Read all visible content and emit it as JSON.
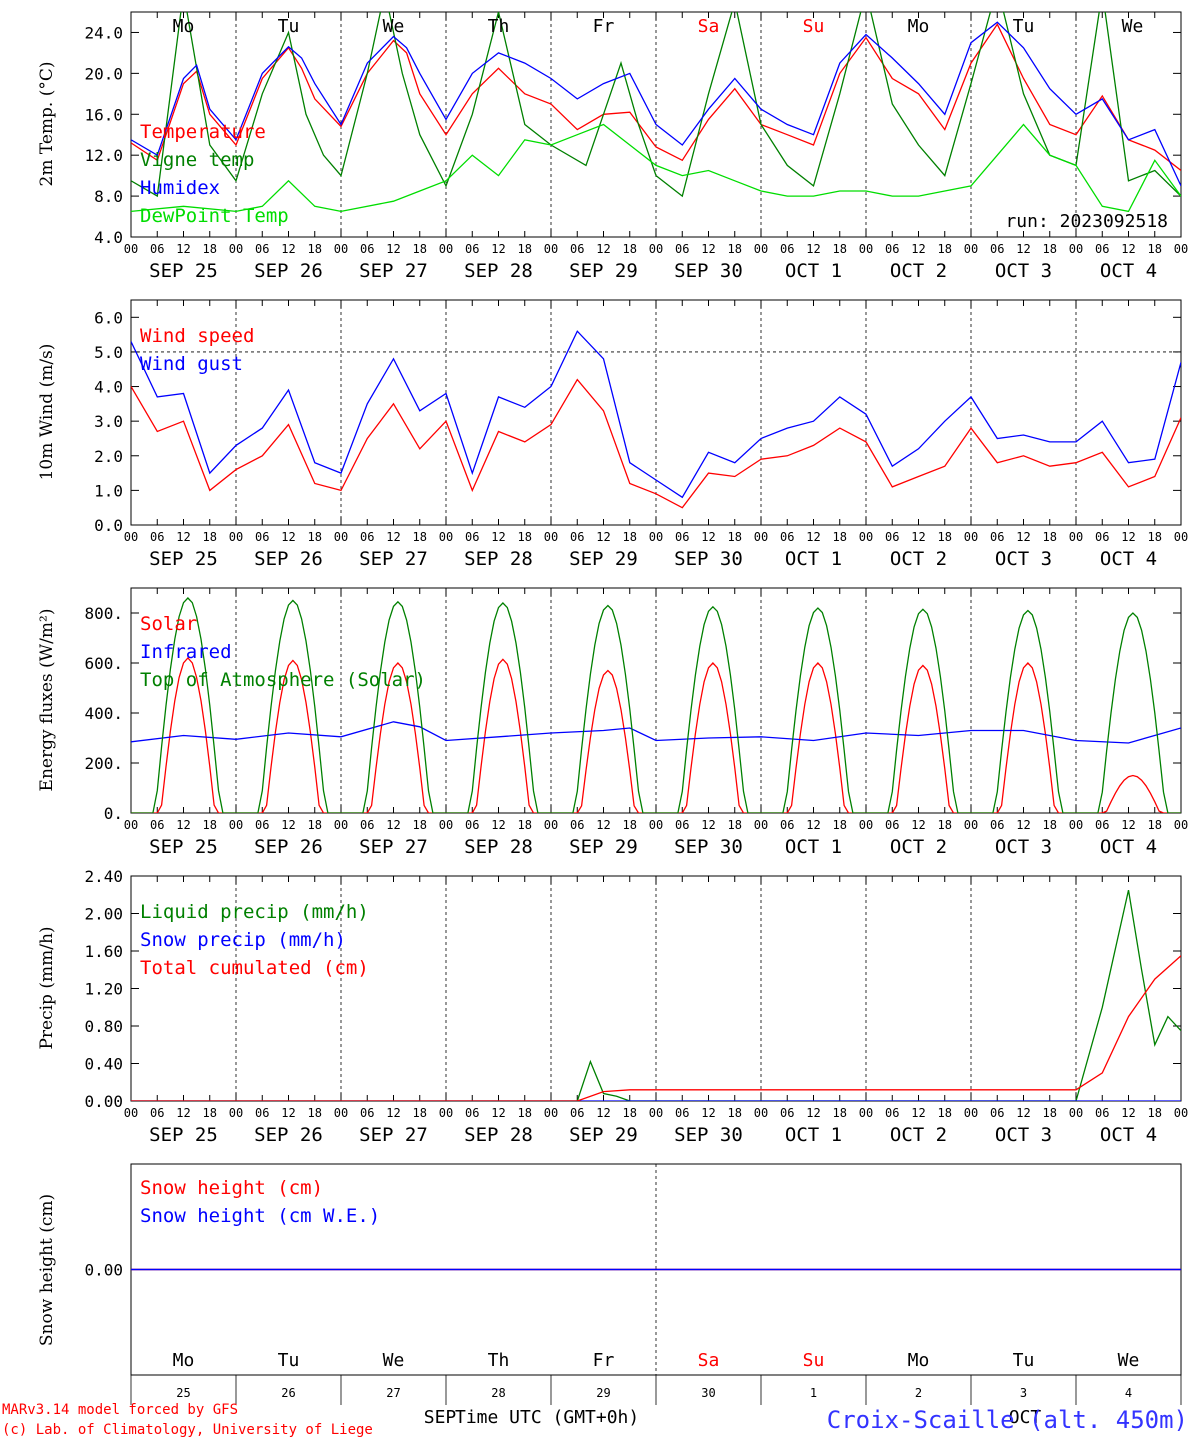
{
  "colors": {
    "temperature": "#ff0000",
    "vigne": "#008000",
    "humidex": "#0000ff",
    "dewpoint": "#00dd00",
    "snow_cm": "#ff0000",
    "snow_we": "#0000ff",
    "weekend": "#ff0000",
    "station": "#3333ff",
    "credits": "#ff0000"
  },
  "day_names": [
    {
      "label": "Mo",
      "weekend": false
    },
    {
      "label": "Tu",
      "weekend": false
    },
    {
      "label": "We",
      "weekend": false
    },
    {
      "label": "Th",
      "weekend": false
    },
    {
      "label": "Fr",
      "weekend": false
    },
    {
      "label": "Sa",
      "weekend": true
    },
    {
      "label": "Su",
      "weekend": true
    },
    {
      "label": "Mo",
      "weekend": false
    },
    {
      "label": "Tu",
      "weekend": false
    },
    {
      "label": "We",
      "weekend": false
    }
  ],
  "date_labels": [
    "SEP 25",
    "SEP 26",
    "SEP 27",
    "SEP 28",
    "SEP 29",
    "SEP 30",
    "OCT  1",
    "OCT  2",
    "OCT  3",
    "OCT  4"
  ],
  "hour_ticks": [
    "00",
    "06",
    "12",
    "18"
  ],
  "bottom_day_numbers": [
    "25",
    "26",
    "27",
    "28",
    "29",
    "30",
    "1",
    "2",
    "3",
    "4"
  ],
  "bottom_month_labels": [
    "SEP",
    "OCT"
  ],
  "xlabel": "Time UTC (GMT+0h)",
  "run_label": "run: 2023092518",
  "footer": {
    "credit_line1": "MARv3.14 model forced by GFS",
    "credit_line2": "(c) Lab. of Climatology, University of Liege",
    "station": "Croix-Scaille (alt. 450m)"
  },
  "chart_data": [
    {
      "type": "line",
      "ylabel": "2m Temp. (°C)",
      "ylim": [
        4.0,
        26.0
      ],
      "yticks": [
        "4.0",
        "8.0",
        "12.0",
        "16.0",
        "20.0",
        "24.0"
      ],
      "ytick_values": [
        4,
        8,
        12,
        16,
        20,
        24
      ],
      "x_unit": "hours since SEP 25 00 UTC",
      "series": [
        {
          "name": "Temperature",
          "color": "#ff0000",
          "x": [
            0,
            6,
            12,
            15,
            18,
            24,
            30,
            36,
            39,
            42,
            48,
            54,
            60,
            63,
            66,
            72,
            78,
            84,
            90,
            96,
            102,
            108,
            114,
            120,
            126,
            132,
            138,
            144,
            150,
            156,
            162,
            168,
            174,
            180,
            186,
            192,
            198,
            204,
            210,
            216,
            222,
            228,
            234,
            240
          ],
          "y": [
            13.2,
            11.5,
            19.0,
            20.2,
            16.0,
            13.0,
            19.5,
            22.5,
            20.5,
            17.5,
            14.8,
            20.0,
            23.2,
            22.0,
            18.0,
            14.0,
            18.0,
            20.5,
            18.0,
            17.0,
            14.5,
            16.0,
            16.2,
            12.8,
            11.5,
            15.5,
            18.5,
            15.0,
            14.0,
            13.0,
            20.0,
            23.5,
            19.5,
            18.0,
            14.5,
            21.0,
            24.8,
            19.5,
            15.0,
            14.0,
            17.8,
            13.5,
            12.5,
            10.5
          ]
        },
        {
          "name": "Vigne temp",
          "color": "#008000",
          "x": [
            0,
            6,
            9,
            12,
            18,
            24,
            30,
            36,
            40,
            44,
            48,
            54,
            58,
            62,
            66,
            72,
            78,
            84,
            90,
            96,
            104,
            108,
            112,
            116,
            120,
            126,
            132,
            138,
            144,
            150,
            156,
            162,
            168,
            174,
            180,
            186,
            192,
            198,
            204,
            210,
            216,
            222,
            228,
            234,
            240
          ],
          "y": [
            9.5,
            8.0,
            18.0,
            28.0,
            13.0,
            9.5,
            18.0,
            24.0,
            16.0,
            12.0,
            10.0,
            20.0,
            28.0,
            20.0,
            14.0,
            9.0,
            16.0,
            26.0,
            15.0,
            13.0,
            11.0,
            16.0,
            21.0,
            15.0,
            10.0,
            8.0,
            18.0,
            27.0,
            15.0,
            11.0,
            9.0,
            18.0,
            28.0,
            17.0,
            13.0,
            10.0,
            19.0,
            28.5,
            18.0,
            12.0,
            11.0,
            28.0,
            9.5,
            10.5,
            8.0
          ]
        },
        {
          "name": "Humidex",
          "color": "#0000ff",
          "x": [
            0,
            6,
            12,
            15,
            18,
            24,
            30,
            36,
            39,
            42,
            48,
            54,
            60,
            63,
            66,
            72,
            78,
            84,
            90,
            96,
            102,
            108,
            114,
            120,
            126,
            132,
            138,
            144,
            150,
            156,
            162,
            168,
            174,
            180,
            186,
            192,
            198,
            204,
            210,
            216,
            222,
            228,
            234,
            240
          ],
          "y": [
            13.5,
            12.0,
            19.5,
            20.8,
            16.5,
            13.5,
            20.0,
            22.6,
            21.5,
            19.0,
            15.0,
            21.0,
            23.6,
            22.5,
            20.0,
            15.5,
            20.0,
            22.0,
            21.0,
            19.5,
            17.5,
            19.0,
            20.0,
            15.0,
            13.0,
            16.5,
            19.5,
            16.5,
            15.0,
            14.0,
            21.0,
            23.8,
            21.5,
            19.0,
            16.0,
            23.0,
            25.0,
            22.5,
            18.5,
            16.0,
            17.5,
            13.5,
            14.5,
            9.0
          ]
        },
        {
          "name": "DewPoint Temp",
          "color": "#00dd00",
          "x": [
            0,
            12,
            24,
            30,
            36,
            42,
            48,
            60,
            66,
            72,
            78,
            84,
            90,
            96,
            102,
            108,
            114,
            120,
            126,
            132,
            138,
            144,
            150,
            156,
            162,
            168,
            174,
            180,
            186,
            192,
            198,
            204,
            210,
            216,
            222,
            228,
            234,
            240
          ],
          "y": [
            6.5,
            7.0,
            6.5,
            7.0,
            9.5,
            7.0,
            6.5,
            7.5,
            8.5,
            9.5,
            12.0,
            10.0,
            13.5,
            13.0,
            14.0,
            15.0,
            13.0,
            11.0,
            10.0,
            10.5,
            9.5,
            8.5,
            8.0,
            8.0,
            8.5,
            8.5,
            8.0,
            8.0,
            8.5,
            9.0,
            12.0,
            15.0,
            12.0,
            11.0,
            7.0,
            6.5,
            11.5,
            8.0
          ]
        }
      ]
    },
    {
      "type": "line",
      "ylabel": "10m Wind (m/s)",
      "ylim": [
        0.0,
        6.5
      ],
      "yticks": [
        "0.0",
        "1.0",
        "2.0",
        "3.0",
        "4.0",
        "5.0",
        "6.0"
      ],
      "ytick_values": [
        0,
        1,
        2,
        3,
        4,
        5,
        6
      ],
      "reference_line": 5.0,
      "series": [
        {
          "name": "Wind speed",
          "color": "#ff0000",
          "x": [
            0,
            6,
            12,
            18,
            24,
            30,
            36,
            42,
            48,
            54,
            60,
            66,
            72,
            78,
            84,
            90,
            96,
            102,
            108,
            114,
            120,
            126,
            132,
            138,
            144,
            150,
            156,
            162,
            168,
            174,
            180,
            186,
            192,
            198,
            204,
            210,
            216,
            222,
            228,
            234,
            240
          ],
          "y": [
            4.0,
            2.7,
            3.0,
            1.0,
            1.6,
            2.0,
            2.9,
            1.2,
            1.0,
            2.5,
            3.5,
            2.2,
            3.0,
            1.0,
            2.7,
            2.4,
            2.9,
            4.2,
            3.3,
            1.2,
            0.9,
            0.5,
            1.5,
            1.4,
            1.9,
            2.0,
            2.3,
            2.8,
            2.4,
            1.1,
            1.4,
            1.7,
            2.8,
            1.8,
            2.0,
            1.7,
            1.8,
            2.1,
            1.1,
            1.4,
            3.1
          ]
        },
        {
          "name": "Wind gust",
          "color": "#0000ff",
          "x": [
            0,
            6,
            12,
            18,
            24,
            30,
            36,
            42,
            48,
            54,
            60,
            66,
            72,
            78,
            84,
            90,
            96,
            102,
            108,
            114,
            120,
            126,
            132,
            138,
            144,
            150,
            156,
            162,
            168,
            174,
            180,
            186,
            192,
            198,
            204,
            210,
            216,
            222,
            228,
            234,
            240
          ],
          "y": [
            5.3,
            3.7,
            3.8,
            1.5,
            2.3,
            2.8,
            3.9,
            1.8,
            1.5,
            3.5,
            4.8,
            3.3,
            3.8,
            1.5,
            3.7,
            3.4,
            4.0,
            5.6,
            4.8,
            1.8,
            1.3,
            0.8,
            2.1,
            1.8,
            2.5,
            2.8,
            3.0,
            3.7,
            3.2,
            1.7,
            2.2,
            3.0,
            3.7,
            2.5,
            2.6,
            2.4,
            2.4,
            3.0,
            1.8,
            1.9,
            4.7
          ]
        }
      ]
    },
    {
      "type": "line",
      "ylabel": "Energy fluxes (W/m²)",
      "ylim": [
        0,
        900
      ],
      "yticks": [
        "0.",
        "200.",
        "400.",
        "600.",
        "800."
      ],
      "ytick_values": [
        0,
        200,
        400,
        600,
        800
      ],
      "series": [
        {
          "name": "Solar",
          "color": "#ff0000",
          "day_peaks": [
            620,
            610,
            600,
            615,
            570,
            600,
            600,
            590,
            600,
            150
          ]
        },
        {
          "name": "Infrared",
          "color": "#0000ff",
          "x": [
            0,
            12,
            24,
            36,
            48,
            60,
            66,
            72,
            84,
            96,
            108,
            114,
            120,
            132,
            144,
            156,
            168,
            180,
            192,
            204,
            216,
            228,
            240
          ],
          "y": [
            285,
            310,
            295,
            320,
            305,
            365,
            345,
            290,
            305,
            320,
            330,
            340,
            290,
            300,
            305,
            290,
            320,
            310,
            330,
            330,
            290,
            280,
            340
          ]
        },
        {
          "name": "Top of Atmosphere (Solar)",
          "color": "#008000",
          "day_peaks": [
            860,
            850,
            845,
            840,
            830,
            825,
            820,
            815,
            810,
            800
          ]
        }
      ]
    },
    {
      "type": "line",
      "ylabel": "Precip (mm/h)",
      "ylim": [
        0.0,
        2.4
      ],
      "yticks": [
        "0.00",
        "0.40",
        "0.80",
        "1.20",
        "1.60",
        "2.00",
        "2.40"
      ],
      "ytick_values": [
        0,
        0.4,
        0.8,
        1.2,
        1.6,
        2.0,
        2.4
      ],
      "series": [
        {
          "name": "Liquid precip (mm/h)",
          "color": "#008000",
          "x": [
            0,
            102,
            105,
            108,
            111,
            114,
            117,
            216,
            222,
            228,
            231,
            234,
            237,
            240
          ],
          "y": [
            0,
            0,
            0.42,
            0.08,
            0.05,
            0,
            0,
            0,
            1.0,
            2.25,
            1.4,
            0.6,
            0.9,
            0.75
          ]
        },
        {
          "name": "Snow precip (mm/h)",
          "color": "#0000ff",
          "x": [
            0,
            240
          ],
          "y": [
            0,
            0
          ]
        },
        {
          "name": "Total cumulated (cm)",
          "color": "#ff0000",
          "x": [
            0,
            102,
            108,
            114,
            216,
            222,
            228,
            234,
            240
          ],
          "y": [
            0,
            0,
            0.1,
            0.12,
            0.12,
            0.3,
            0.9,
            1.3,
            1.55
          ]
        }
      ]
    },
    {
      "type": "line",
      "ylabel": "Snow height (cm)",
      "ylim": [
        -1,
        1
      ],
      "yticks": [
        "0.00"
      ],
      "ytick_values": [
        0
      ],
      "series": [
        {
          "name": "Snow height (cm)",
          "color": "#ff0000",
          "x": [
            0,
            240
          ],
          "y": [
            0,
            0
          ]
        },
        {
          "name": "Snow height (cm W.E.)",
          "color": "#0000ff",
          "x": [
            0,
            240
          ],
          "y": [
            0,
            0
          ]
        }
      ]
    }
  ]
}
